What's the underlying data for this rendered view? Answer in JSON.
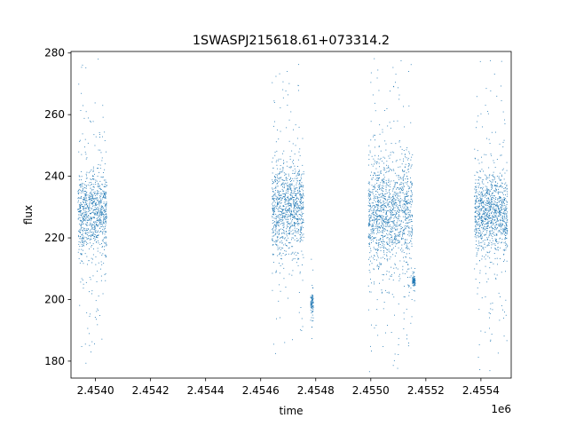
{
  "chart_data": {
    "type": "scatter",
    "title": "1SWASPJ215618.61+073314.2",
    "xlabel": "time",
    "ylabel": "flux",
    "x_offset_label": "1e6",
    "xlim": [
      2453911,
      2455510
    ],
    "ylim": [
      174.5,
      280.5
    ],
    "x_ticks": [
      2454000,
      2454200,
      2454400,
      2454600,
      2454800,
      2455000,
      2455200,
      2455400
    ],
    "x_tick_labels": [
      "2.4540",
      "2.4542",
      "2.4544",
      "2.4546",
      "2.4548",
      "2.4550",
      "2.4552",
      "2.4554"
    ],
    "y_ticks": [
      180,
      200,
      220,
      240,
      260,
      280
    ],
    "y_tick_labels": [
      "180",
      "200",
      "220",
      "240",
      "260",
      "280"
    ],
    "grid": false,
    "marker_color": "#1f77b4",
    "season_clusters": [
      {
        "x_start": 2453935,
        "x_end": 2454040,
        "flux_core": 228,
        "flux_spread": 9
      },
      {
        "x_start": 2454640,
        "x_end": 2454755,
        "flux_core": 230,
        "flux_spread": 10
      },
      {
        "x_start": 2454780,
        "x_end": 2454790,
        "flux_core": 199,
        "flux_spread": 2
      },
      {
        "x_start": 2454990,
        "x_end": 2455150,
        "flux_core": 228,
        "flux_spread": 12
      },
      {
        "x_start": 2455150,
        "x_end": 2455160,
        "flux_core": 206,
        "flux_spread": 1
      },
      {
        "x_start": 2455375,
        "x_end": 2455495,
        "flux_core": 228,
        "flux_spread": 9
      }
    ]
  }
}
